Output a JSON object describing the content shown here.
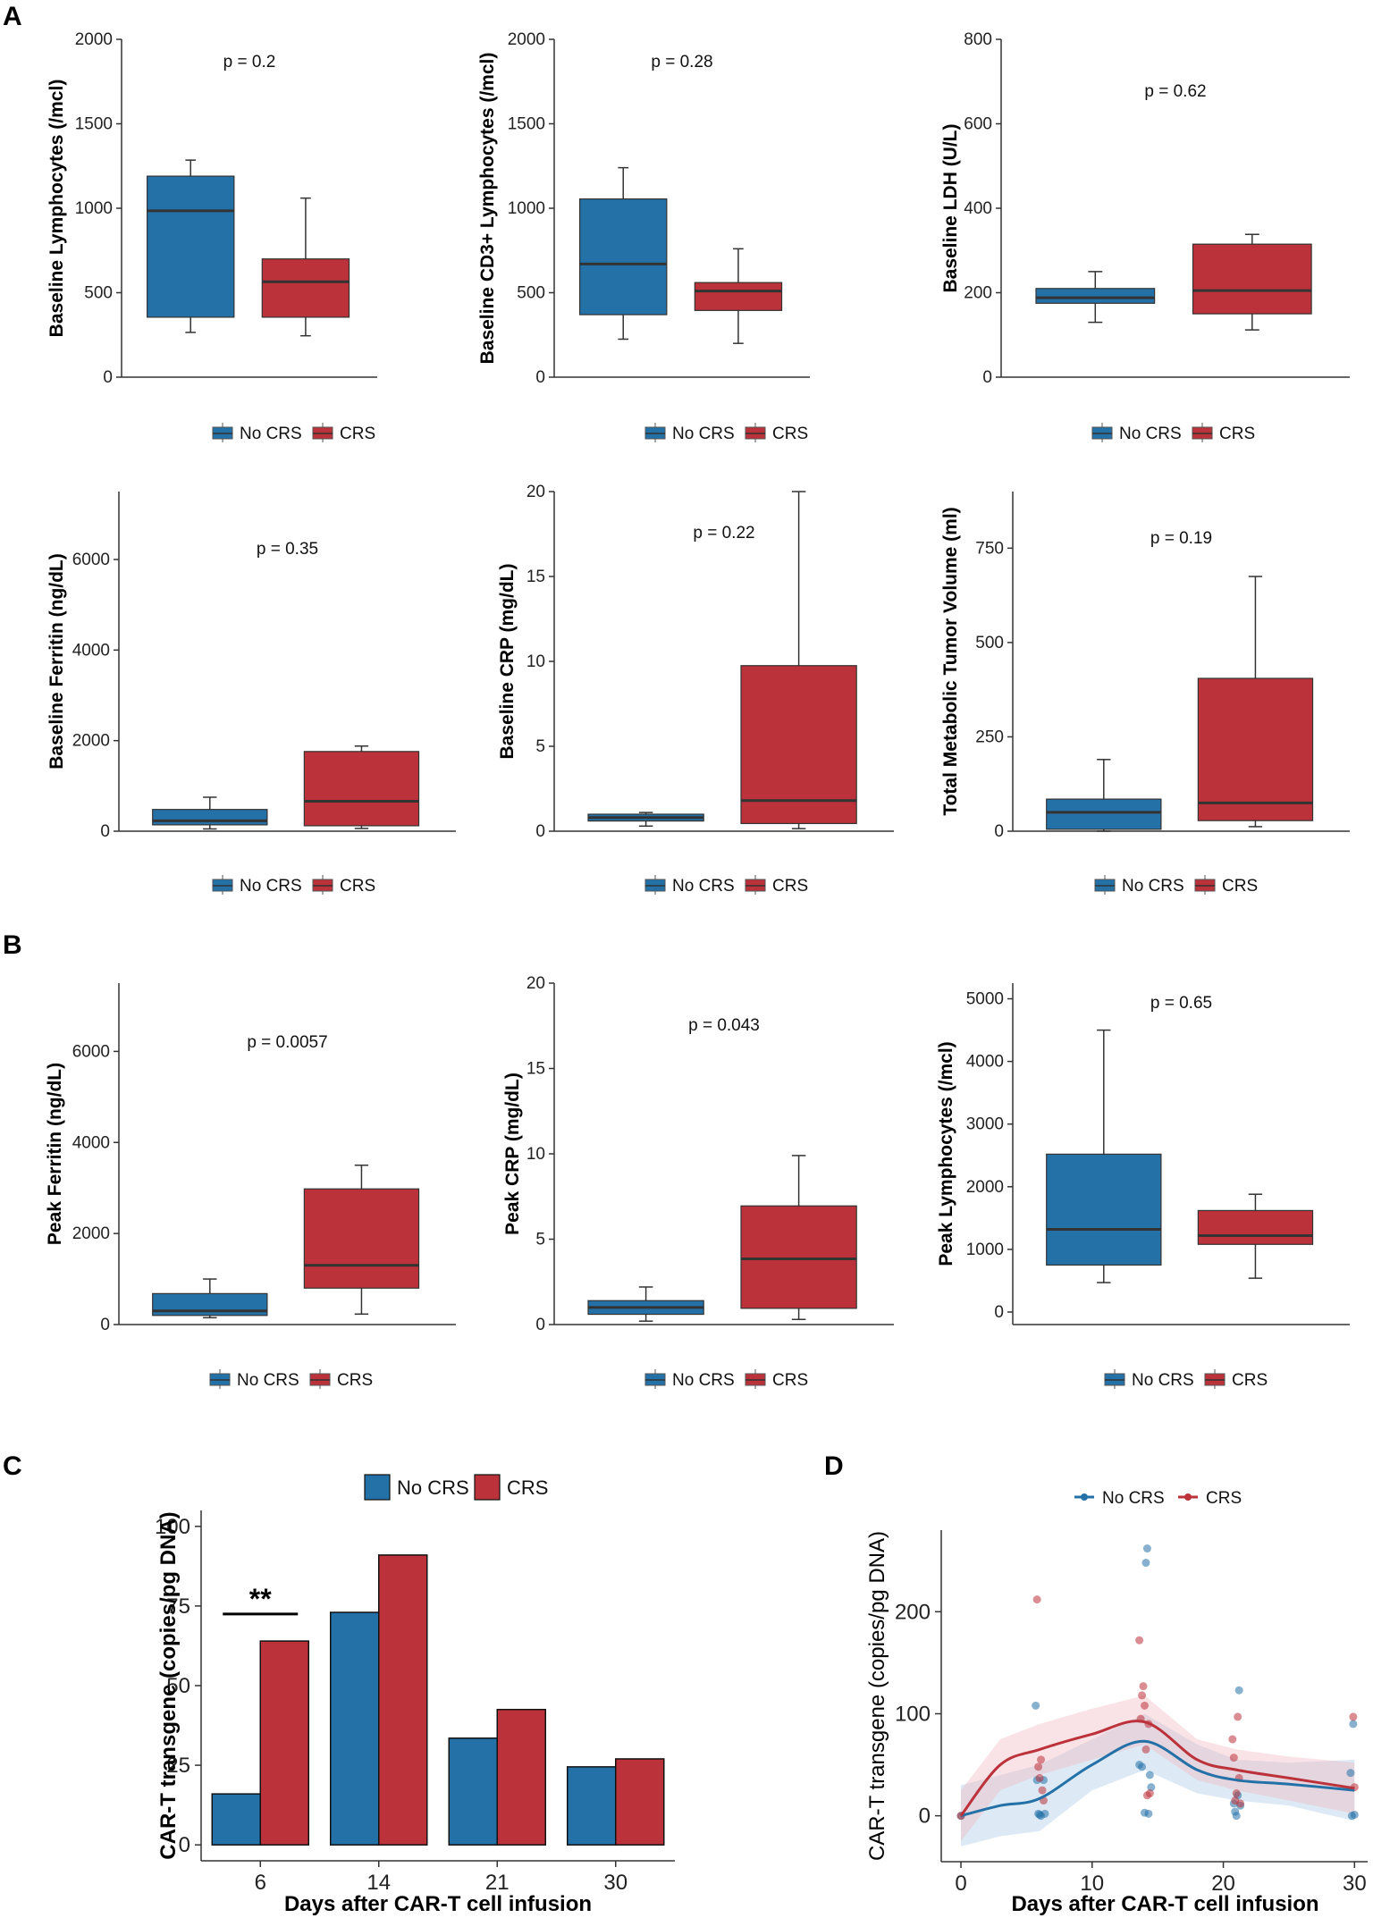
{
  "colors": {
    "no_crs": "#2471a8",
    "crs": "#bb323a",
    "median": "#333333",
    "axis": "#333333"
  },
  "panel_labels": {
    "A": "A",
    "B": "B",
    "C": "C",
    "D": "D"
  },
  "chart_data": [
    {
      "type": "box",
      "panel": "A",
      "ylabel": "Baseline Lymphocytes (/mcl)",
      "ylim": [
        0,
        2000
      ],
      "yticks": [
        0,
        500,
        1000,
        1500,
        2000
      ],
      "pvalue": "p = 0.2",
      "categories": [
        "No CRS",
        "CRS"
      ],
      "boxes": [
        {
          "min": 265,
          "q1": 355,
          "median": 985,
          "q3": 1190,
          "max": 1285
        },
        {
          "min": 245,
          "q1": 355,
          "median": 565,
          "q3": 700,
          "max": 1060
        }
      ]
    },
    {
      "type": "box",
      "panel": "A",
      "ylabel": "Baseline CD3+ Lymphocytes (/mcl)",
      "ylim": [
        0,
        2000
      ],
      "yticks": [
        0,
        500,
        1000,
        1500,
        2000
      ],
      "pvalue": "p = 0.28",
      "categories": [
        "No CRS",
        "CRS"
      ],
      "boxes": [
        {
          "min": 225,
          "q1": 370,
          "median": 670,
          "q3": 1055,
          "max": 1240
        },
        {
          "min": 200,
          "q1": 395,
          "median": 510,
          "q3": 560,
          "max": 760
        }
      ]
    },
    {
      "type": "box",
      "panel": "A",
      "ylabel": "Baseline LDH (U/L)",
      "ylim": [
        0,
        800
      ],
      "yticks": [
        0,
        200,
        400,
        600,
        800
      ],
      "pvalue": "p = 0.62",
      "categories": [
        "No CRS",
        "CRS"
      ],
      "boxes": [
        {
          "min": 130,
          "q1": 175,
          "median": 188,
          "q3": 210,
          "max": 250
        },
        {
          "min": 112,
          "q1": 150,
          "median": 205,
          "q3": 315,
          "max": 338
        }
      ]
    },
    {
      "type": "box",
      "panel": "A",
      "ylabel": "Baseline Ferritin (ng/dL)",
      "ylim": [
        0,
        7500
      ],
      "yticks": [
        0,
        2000,
        4000,
        6000
      ],
      "pvalue": "p = 0.35",
      "categories": [
        "No CRS",
        "CRS"
      ],
      "boxes": [
        {
          "min": 50,
          "q1": 140,
          "median": 230,
          "q3": 480,
          "max": 750
        },
        {
          "min": 60,
          "q1": 120,
          "median": 660,
          "q3": 1760,
          "max": 1880
        }
      ]
    },
    {
      "type": "box",
      "panel": "A",
      "ylabel": "Baseline CRP (mg/dL)",
      "ylim": [
        0,
        20
      ],
      "yticks": [
        0,
        5,
        10,
        15,
        20
      ],
      "pvalue": "p = 0.22",
      "categories": [
        "No CRS",
        "CRS"
      ],
      "boxes": [
        {
          "min": 0.3,
          "q1": 0.6,
          "median": 0.8,
          "q3": 1.0,
          "max": 1.1
        },
        {
          "min": 0.15,
          "q1": 0.45,
          "median": 1.8,
          "q3": 9.75,
          "max": 20
        }
      ]
    },
    {
      "type": "box",
      "panel": "A",
      "ylabel": "Total Metabolic Tumor Volume (ml)",
      "ylim": [
        0,
        900
      ],
      "yticks": [
        0,
        250,
        500,
        750
      ],
      "pvalue": "p = 0.19",
      "categories": [
        "No CRS",
        "CRS"
      ],
      "boxes": [
        {
          "min": 0,
          "q1": 5,
          "median": 50,
          "q3": 85,
          "max": 190
        },
        {
          "min": 12,
          "q1": 28,
          "median": 75,
          "q3": 405,
          "max": 675
        }
      ]
    },
    {
      "type": "box",
      "panel": "B",
      "ylabel": "Peak Ferritin (ng/dL)",
      "ylim": [
        0,
        7500
      ],
      "yticks": [
        0,
        2000,
        4000,
        6000
      ],
      "pvalue": "p = 0.0057",
      "categories": [
        "No CRS",
        "CRS"
      ],
      "boxes": [
        {
          "min": 150,
          "q1": 200,
          "median": 300,
          "q3": 680,
          "max": 1000
        },
        {
          "min": 230,
          "q1": 800,
          "median": 1300,
          "q3": 2980,
          "max": 3500
        }
      ]
    },
    {
      "type": "box",
      "panel": "B",
      "ylabel": "Peak CRP (mg/dL)",
      "ylim": [
        0,
        20
      ],
      "yticks": [
        0,
        5,
        10,
        15,
        20
      ],
      "pvalue": "p = 0.043",
      "categories": [
        "No CRS",
        "CRS"
      ],
      "boxes": [
        {
          "min": 0.2,
          "q1": 0.6,
          "median": 1.0,
          "q3": 1.4,
          "max": 2.2
        },
        {
          "min": 0.3,
          "q1": 0.95,
          "median": 3.85,
          "q3": 6.95,
          "max": 9.9
        }
      ]
    },
    {
      "type": "box",
      "panel": "B",
      "ylabel": "Peak Lymphocytes (/mcl)",
      "ylim": [
        -200,
        5250
      ],
      "yticks": [
        0,
        1000,
        2000,
        3000,
        4000,
        5000
      ],
      "pvalue": "p = 0.65",
      "categories": [
        "No CRS",
        "CRS"
      ],
      "boxes": [
        {
          "min": 470,
          "q1": 750,
          "median": 1320,
          "q3": 2520,
          "max": 4500
        },
        {
          "min": 540,
          "q1": 1080,
          "median": 1220,
          "q3": 1620,
          "max": 1880
        }
      ]
    },
    {
      "type": "bar",
      "panel": "C",
      "ylabel": "CAR-T transgene (copies/pg DNA)",
      "xlabel": "Days after CAR-T cell infusion",
      "categories": [
        "6",
        "14",
        "21",
        "30"
      ],
      "ylim": [
        -5,
        105
      ],
      "yticks": [
        0,
        25,
        50,
        75,
        100
      ],
      "series": [
        {
          "name": "No CRS",
          "values": [
            16,
            73,
            33.5,
            24.5
          ]
        },
        {
          "name": "CRS",
          "values": [
            64,
            91,
            42.5,
            27
          ]
        }
      ],
      "annotation": "**"
    },
    {
      "type": "scatter",
      "panel": "D",
      "ylabel": "CAR-T transgene (copies/pg DNA)",
      "xlabel": "Days after CAR-T cell infusion",
      "xlim": [
        -1.5,
        31
      ],
      "ylim": [
        -45,
        280
      ],
      "xticks": [
        0,
        10,
        20,
        30
      ],
      "yticks": [
        0,
        100,
        200
      ],
      "series": [
        {
          "name": "No CRS",
          "points": [
            [
              0,
              0
            ],
            [
              5.7,
              108
            ],
            [
              5.8,
              35
            ],
            [
              5.9,
              2
            ],
            [
              6.0,
              1
            ],
            [
              6.1,
              0
            ],
            [
              6.3,
              35
            ],
            [
              6.4,
              2
            ],
            [
              13.6,
              50
            ],
            [
              13.8,
              48
            ],
            [
              14.0,
              3
            ],
            [
              14.1,
              248
            ],
            [
              14.2,
              262
            ],
            [
              14.3,
              2
            ],
            [
              14.4,
              40
            ],
            [
              14.5,
              28
            ],
            [
              20.8,
              12
            ],
            [
              20.9,
              4
            ],
            [
              21.0,
              0
            ],
            [
              21.1,
              20
            ],
            [
              21.2,
              123
            ],
            [
              21.3,
              10
            ],
            [
              29.7,
              42
            ],
            [
              29.8,
              0
            ],
            [
              29.9,
              90
            ],
            [
              30.0,
              1
            ]
          ],
          "smooth": [
            [
              0,
              0
            ],
            [
              3,
              10
            ],
            [
              6,
              17
            ],
            [
              10,
              50
            ],
            [
              14,
              73
            ],
            [
              18,
              45
            ],
            [
              21,
              35
            ],
            [
              25,
              31
            ],
            [
              30,
              25
            ]
          ],
          "band_low": [
            [
              0,
              -30
            ],
            [
              3,
              -20
            ],
            [
              6,
              -15
            ],
            [
              10,
              25
            ],
            [
              14,
              45
            ],
            [
              18,
              22
            ],
            [
              21,
              15
            ],
            [
              25,
              10
            ],
            [
              30,
              -5
            ]
          ],
          "band_high": [
            [
              0,
              30
            ],
            [
              3,
              40
            ],
            [
              6,
              50
            ],
            [
              10,
              75
            ],
            [
              14,
              100
            ],
            [
              18,
              70
            ],
            [
              21,
              55
            ],
            [
              25,
              52
            ],
            [
              30,
              55
            ]
          ]
        },
        {
          "name": "CRS",
          "points": [
            [
              0,
              0
            ],
            [
              5.8,
              212
            ],
            [
              5.9,
              48
            ],
            [
              6.0,
              37
            ],
            [
              6.1,
              55
            ],
            [
              6.2,
              25
            ],
            [
              6.3,
              15
            ],
            [
              13.6,
              172
            ],
            [
              13.7,
              95
            ],
            [
              13.8,
              118
            ],
            [
              13.9,
              127
            ],
            [
              14.0,
              108
            ],
            [
              14.1,
              65
            ],
            [
              14.2,
              20
            ],
            [
              14.3,
              90
            ],
            [
              14.4,
              22
            ],
            [
              20.7,
              75
            ],
            [
              20.8,
              57
            ],
            [
              20.9,
              15
            ],
            [
              21.0,
              22
            ],
            [
              21.1,
              97
            ],
            [
              21.2,
              37
            ],
            [
              21.3,
              12
            ],
            [
              29.9,
              97
            ],
            [
              30.0,
              28
            ]
          ],
          "smooth": [
            [
              0,
              0
            ],
            [
              3,
              50
            ],
            [
              6,
              65
            ],
            [
              10,
              80
            ],
            [
              14,
              92
            ],
            [
              18,
              55
            ],
            [
              21,
              45
            ],
            [
              25,
              37
            ],
            [
              30,
              27
            ]
          ],
          "band_low": [
            [
              0,
              -25
            ],
            [
              3,
              25
            ],
            [
              6,
              40
            ],
            [
              10,
              55
            ],
            [
              14,
              70
            ],
            [
              18,
              35
            ],
            [
              21,
              25
            ],
            [
              25,
              15
            ],
            [
              30,
              2
            ]
          ],
          "band_high": [
            [
              0,
              25
            ],
            [
              3,
              75
            ],
            [
              6,
              90
            ],
            [
              10,
              105
            ],
            [
              14,
              118
            ],
            [
              18,
              75
            ],
            [
              21,
              65
            ],
            [
              25,
              58
            ],
            [
              30,
              52
            ]
          ]
        }
      ]
    }
  ]
}
